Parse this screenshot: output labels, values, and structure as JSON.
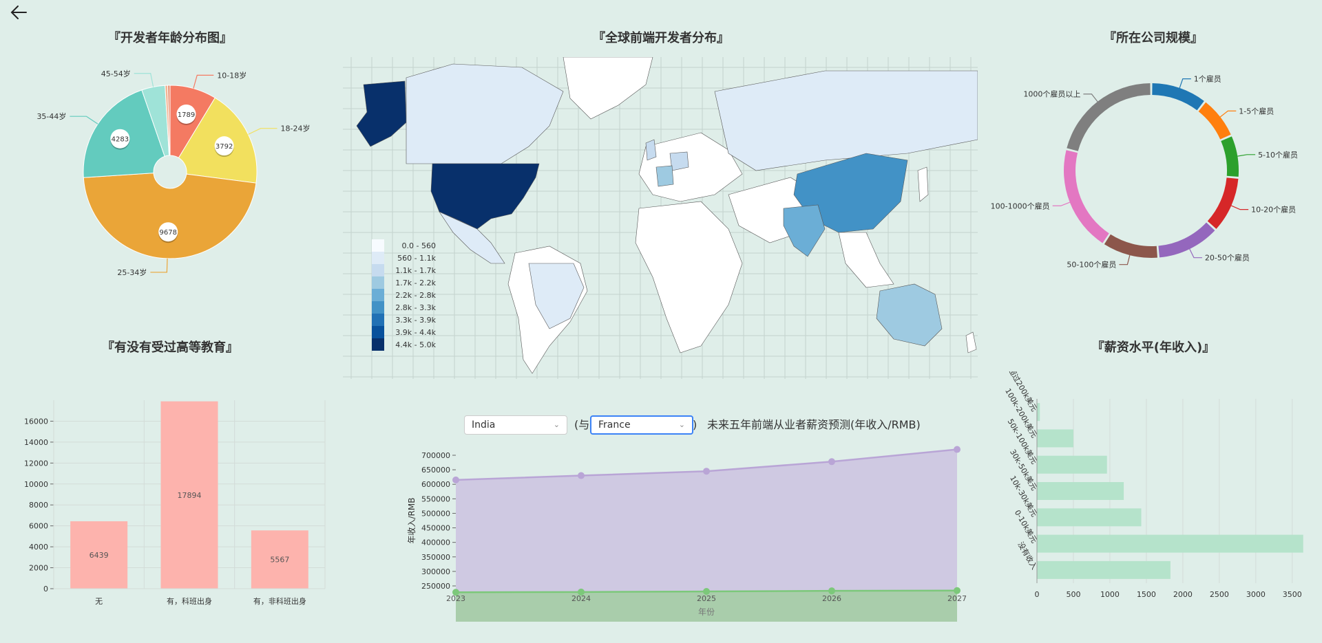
{
  "nav": {
    "back_icon": "arrow-left-icon"
  },
  "titles": {
    "age": "『开发者年龄分布图』",
    "map": "『全球前端开发者分布』",
    "company": "『所在公司规模』",
    "education": "『有没有受过高等教育』",
    "salary": "『薪资水平(年收入)』"
  },
  "forecast": {
    "select1": "India",
    "paren_open": "(与",
    "select2": "France",
    "paren_close": ")",
    "title": "未来五年前端从业者薪资预测(年收入/RMB)"
  },
  "map_legend": [
    "0.0 - 560",
    "560 - 1.1k",
    "1.1k - 1.7k",
    "1.7k - 2.2k",
    "2.2k - 2.8k",
    "2.8k - 3.3k",
    "3.3k - 3.9k",
    "3.9k - 4.4k",
    "4.4k - 5.0k"
  ],
  "map_legend_colors": [
    "#f7fbff",
    "#deebf7",
    "#c6dbef",
    "#9ecae1",
    "#6baed6",
    "#4292c6",
    "#2171b5",
    "#08519c",
    "#08306b"
  ],
  "chart_data": [
    {
      "id": "age",
      "type": "pie",
      "title": "『开发者年龄分布图』",
      "slices": [
        {
          "label": "10-18岁",
          "value": 1789,
          "color": "#f47a62"
        },
        {
          "label": "18-24岁",
          "value": 3792,
          "color": "#f2e05e"
        },
        {
          "label": "25-34岁",
          "value": 9678,
          "color": "#eaa538"
        },
        {
          "label": "35-44岁",
          "value": 4283,
          "color": "#63cbbe"
        },
        {
          "label": "45-54岁",
          "value": 900,
          "color": "#9fe3d8"
        },
        {
          "label": "",
          "value": 100,
          "color": "#f3b493"
        },
        {
          "label": "",
          "value": 90,
          "color": "#e88f72"
        }
      ]
    },
    {
      "id": "company",
      "type": "pie",
      "title": "『所在公司规模』",
      "slices": [
        {
          "label": "1个雇员",
          "value": 8,
          "color": "#1f77b4"
        },
        {
          "label": "1-5个雇员",
          "value": 6,
          "color": "#ff7f0e"
        },
        {
          "label": "5-10个雇员",
          "value": 6,
          "color": "#2ca02c"
        },
        {
          "label": "10-20个雇员",
          "value": 8,
          "color": "#d62728"
        },
        {
          "label": "20-50个雇员",
          "value": 9,
          "color": "#9467bd"
        },
        {
          "label": "50-100个雇员",
          "value": 8,
          "color": "#8c564b"
        },
        {
          "label": "100-1000个雇员",
          "value": 15,
          "color": "#e377c2"
        },
        {
          "label": "1000个雇员以上",
          "value": 16,
          "color": "#7f7f7f"
        }
      ]
    },
    {
      "id": "education",
      "type": "bar",
      "title": "『有没有受过高等教育』",
      "categories": [
        "无",
        "有，科班出身",
        "有，非科班出身"
      ],
      "values": [
        6439,
        17894,
        5567
      ],
      "ylim": [
        0,
        18000
      ],
      "yticks": [
        0,
        2000,
        4000,
        6000,
        8000,
        10000,
        12000,
        14000,
        16000
      ],
      "color": "#fdb3ad"
    },
    {
      "id": "forecast",
      "type": "area",
      "title": "未来五年前端从业者薪资预测(年收入/RMB)",
      "x": [
        "2023",
        "2024",
        "2025",
        "2026",
        "2027"
      ],
      "xlabel": "年份",
      "ylabel": "年收入/RMB",
      "ylim": [
        250000,
        700000
      ],
      "yticks": [
        250000,
        300000,
        350000,
        400000,
        450000,
        500000,
        550000,
        600000,
        650000,
        700000
      ],
      "series": [
        {
          "name": "France",
          "values": [
            615000,
            630000,
            645000,
            678000,
            720000
          ],
          "color": "#b9a5d6",
          "fill": "#cdc6e2"
        },
        {
          "name": "India",
          "values": [
            228000,
            229000,
            231000,
            233000,
            234000
          ],
          "color": "#7cc87a",
          "fill": "#a7cda8"
        }
      ]
    },
    {
      "id": "salary",
      "type": "bar",
      "orientation": "horizontal",
      "title": "『薪资水平(年收入)』",
      "categories": [
        "超过200k美元",
        "100k-200k美元",
        "50k-100k美元",
        "30k-50k美元",
        "10k-30k美元",
        "0-10k美元",
        "没有收入"
      ],
      "values": [
        40,
        500,
        960,
        1190,
        1430,
        3650,
        1830
      ],
      "xlim": [
        0,
        3700
      ],
      "xticks": [
        0,
        500,
        1000,
        1500,
        2000,
        2500,
        3000,
        3500
      ],
      "color": "#b5e3cb"
    }
  ]
}
